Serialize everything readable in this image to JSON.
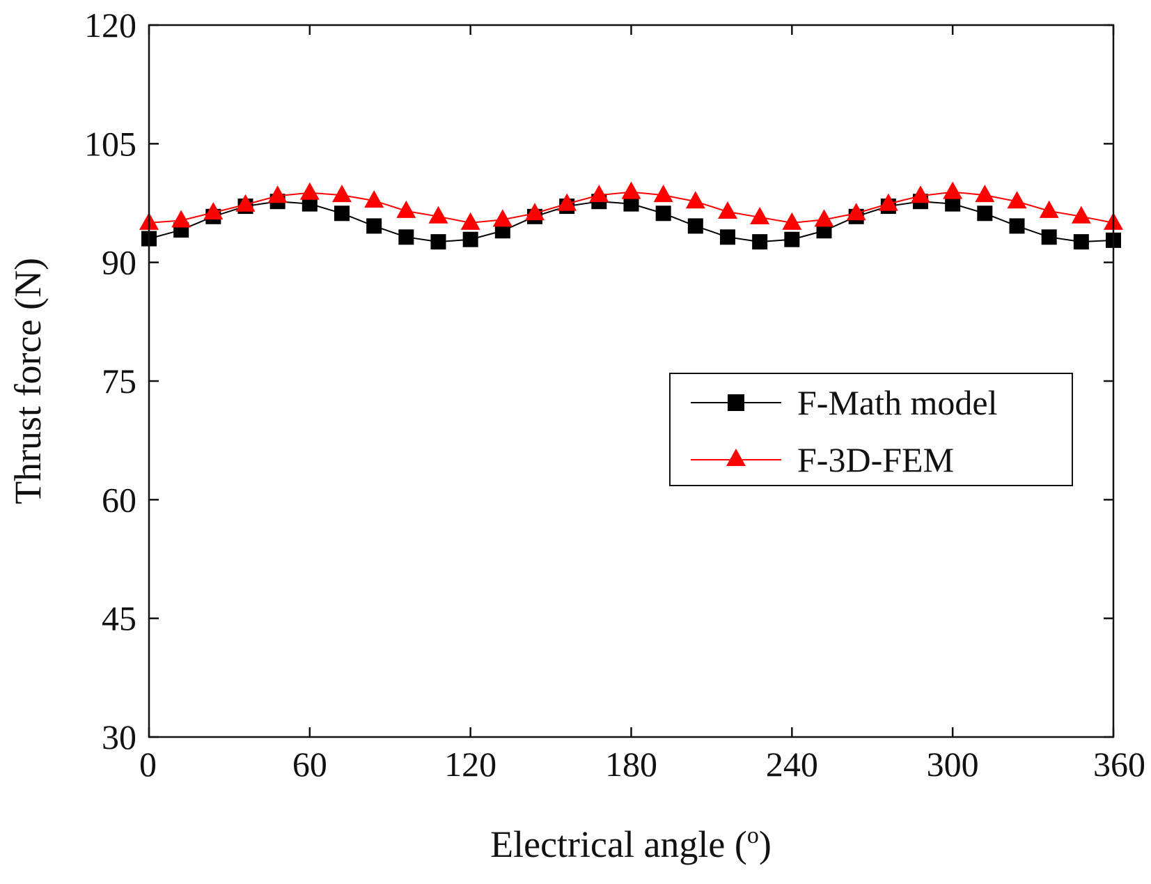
{
  "chart_data": {
    "type": "line",
    "title": "",
    "xlabel": "Electrical angle (",
    "xlabel_sup": "o",
    "xlabel_end": ")",
    "ylabel": "Thrust force (N)",
    "xlim": [
      0,
      360
    ],
    "ylim": [
      30,
      120
    ],
    "xticks": [
      0,
      60,
      120,
      180,
      240,
      300,
      360
    ],
    "yticks": [
      30,
      45,
      60,
      75,
      90,
      105,
      120
    ],
    "grid": false,
    "legend_position": "center-right",
    "x": [
      0,
      12,
      24,
      36,
      48,
      60,
      72,
      84,
      96,
      108,
      120,
      132,
      144,
      156,
      168,
      180,
      192,
      204,
      216,
      228,
      240,
      252,
      264,
      276,
      288,
      300,
      312,
      324,
      336,
      348,
      360
    ],
    "series": [
      {
        "name": "F-Math model",
        "color": "#000000",
        "marker": "square",
        "values": [
          93.0,
          94.1,
          95.8,
          97.1,
          97.7,
          97.4,
          96.2,
          94.6,
          93.2,
          92.6,
          92.9,
          94.0,
          95.8,
          97.1,
          97.7,
          97.4,
          96.2,
          94.6,
          93.2,
          92.6,
          92.9,
          94.0,
          95.8,
          97.1,
          97.7,
          97.4,
          96.2,
          94.6,
          93.2,
          92.6,
          92.8
        ]
      },
      {
        "name": "F-3D-FEM",
        "color": "#ff0000",
        "marker": "triangle",
        "values": [
          95.0,
          95.3,
          96.3,
          97.3,
          98.4,
          98.8,
          98.5,
          97.8,
          96.5,
          95.8,
          95.0,
          95.4,
          96.2,
          97.4,
          98.5,
          98.9,
          98.5,
          97.7,
          96.4,
          95.7,
          95.0,
          95.4,
          96.2,
          97.4,
          98.4,
          98.9,
          98.5,
          97.7,
          96.5,
          95.8,
          95.0
        ]
      }
    ]
  }
}
